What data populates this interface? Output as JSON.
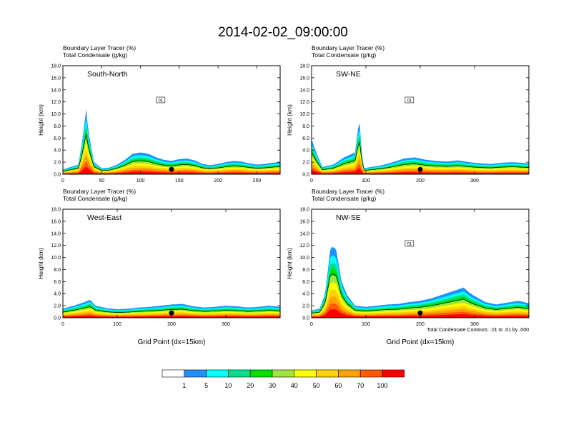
{
  "title": "2014-02-02_09:00:00",
  "chart_data": [
    {
      "type": "area",
      "panel_label": "South-North",
      "header_line1": "Boundary Layer Tracer   (%)",
      "header_line2": "Total Condensate   (g/kg)",
      "ylabel": "Height (km)",
      "xlabel": "",
      "xlim": [
        0,
        280
      ],
      "ylim": [
        0,
        18
      ],
      "xticks": [
        0,
        50,
        100,
        150,
        200,
        250
      ],
      "yticks": [
        0,
        2,
        4,
        6,
        8,
        10,
        12,
        14,
        16,
        18
      ],
      "contour_label": "01",
      "surface_point_x": 140,
      "tracer_top_km": {
        "x": [
          0,
          20,
          25,
          30,
          33,
          40,
          50,
          60,
          70,
          80,
          90,
          100,
          110,
          120,
          130,
          140,
          150,
          160,
          170,
          180,
          190,
          200,
          210,
          220,
          230,
          240,
          250,
          260,
          270,
          280
        ],
        "y": [
          0.8,
          1.6,
          5.5,
          10.8,
          7.0,
          2.0,
          1.0,
          1.1,
          1.6,
          2.4,
          3.4,
          3.6,
          3.4,
          2.8,
          2.4,
          2.2,
          2.5,
          2.6,
          2.3,
          1.7,
          1.5,
          1.7,
          2.0,
          2.2,
          2.1,
          1.8,
          1.6,
          1.7,
          1.9,
          2.0
        ]
      }
    },
    {
      "type": "area",
      "panel_label": "SW-NE",
      "header_line1": "Boundary Layer Tracer   (%)",
      "header_line2": "Total Condensate   (g/kg)",
      "ylabel": "Height (km)",
      "xlabel": "",
      "xlim": [
        0,
        400
      ],
      "ylim": [
        0,
        18
      ],
      "xticks": [
        0,
        100,
        200,
        300
      ],
      "yticks": [
        0,
        2,
        4,
        6,
        8,
        10,
        12,
        14,
        16,
        18
      ],
      "contour_label": "01",
      "surface_point_x": 200,
      "tracer_top_km": {
        "x": [
          0,
          10,
          20,
          40,
          60,
          80,
          88,
          92,
          96,
          110,
          130,
          150,
          170,
          190,
          210,
          230,
          250,
          270,
          290,
          310,
          330,
          350,
          370,
          400
        ],
        "y": [
          5.8,
          3.2,
          1.2,
          1.6,
          2.8,
          3.6,
          9.2,
          4.0,
          1.0,
          1.2,
          1.5,
          2.0,
          2.6,
          2.8,
          2.4,
          2.2,
          2.1,
          2.3,
          2.0,
          1.8,
          1.7,
          1.9,
          2.0,
          1.8
        ]
      }
    },
    {
      "type": "area",
      "panel_label": "West-East",
      "header_line1": "Boundary Layer Tracer   (%)",
      "header_line2": "Total Condensate   (g/kg)",
      "ylabel": "Height (km)",
      "xlabel": "Grid Point (dx=15km)",
      "xlim": [
        0,
        400
      ],
      "ylim": [
        0,
        18
      ],
      "xticks": [
        0,
        100,
        200,
        300
      ],
      "yticks": [
        0,
        2,
        4,
        6,
        8,
        10,
        12,
        14,
        16,
        18
      ],
      "contour_label": "",
      "surface_point_x": 200,
      "tracer_top_km": {
        "x": [
          0,
          20,
          40,
          50,
          60,
          80,
          100,
          120,
          140,
          160,
          180,
          200,
          220,
          240,
          260,
          280,
          300,
          320,
          340,
          360,
          380,
          400
        ],
        "y": [
          1.5,
          2.0,
          2.6,
          3.0,
          2.0,
          1.6,
          1.4,
          1.5,
          1.7,
          1.8,
          2.0,
          2.2,
          2.3,
          1.9,
          1.7,
          1.8,
          2.0,
          1.9,
          1.7,
          1.8,
          2.0,
          1.8
        ]
      }
    },
    {
      "type": "area",
      "panel_label": "NW-SE",
      "header_line1": "Boundary Layer Tracer   (%)",
      "header_line2": "Total Condensate   (g/kg)",
      "ylabel": "Height (km)",
      "xlabel": "Grid Point (dx=15km)",
      "xlim": [
        0,
        400
      ],
      "ylim": [
        0,
        18
      ],
      "xticks": [
        0,
        100,
        200,
        300
      ],
      "yticks": [
        0,
        2,
        4,
        6,
        8,
        10,
        12,
        14,
        16,
        18
      ],
      "contour_label": "01",
      "surface_point_x": 200,
      "footnote": "Total Condensate Contours: .01 to .01 by .000",
      "tracer_top_km": {
        "x": [
          0,
          15,
          25,
          35,
          45,
          55,
          65,
          80,
          100,
          120,
          140,
          160,
          180,
          200,
          220,
          240,
          260,
          280,
          290,
          300,
          320,
          340,
          360,
          380,
          400
        ],
        "y": [
          1.2,
          1.5,
          4.0,
          11.8,
          11.5,
          6.0,
          3.8,
          2.0,
          1.8,
          2.0,
          2.2,
          2.3,
          2.6,
          2.8,
          3.2,
          3.8,
          4.4,
          5.0,
          4.2,
          3.6,
          2.6,
          2.2,
          2.5,
          2.8,
          2.4
        ]
      }
    }
  ],
  "colorbar": {
    "colors": [
      "#ffffff",
      "#1e90ff",
      "#00ffff",
      "#00e08a",
      "#00e000",
      "#a0e640",
      "#ffff00",
      "#ffd200",
      "#ffa000",
      "#ff5a00",
      "#ff0000"
    ],
    "labels": [
      "1",
      "5",
      "10",
      "20",
      "30",
      "40",
      "50",
      "60",
      "70",
      "100"
    ]
  }
}
